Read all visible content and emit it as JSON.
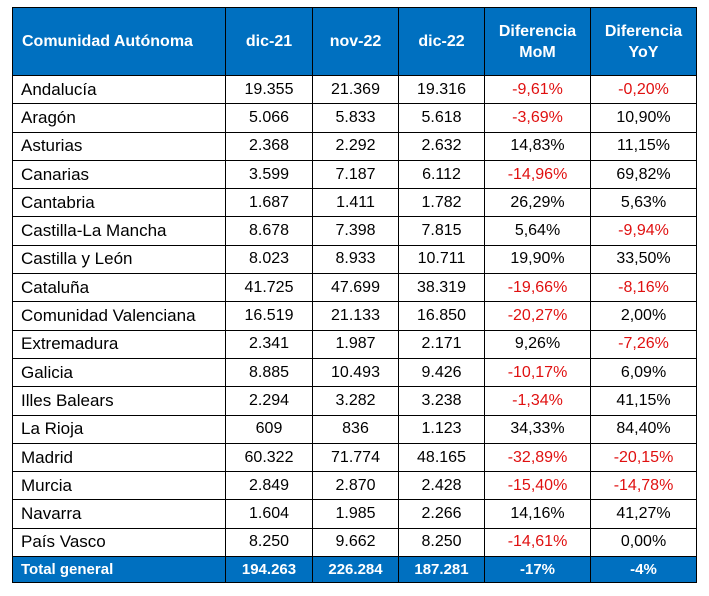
{
  "chart_data": {
    "type": "table",
    "columns": [
      "Comunidad Autónoma",
      "dic-21",
      "nov-22",
      "dic-22",
      "Diferencia MoM",
      "Diferencia YoY"
    ],
    "rows": [
      [
        "Andalucía",
        "19.355",
        "21.369",
        "19.316",
        "-9,61%",
        "-0,20%"
      ],
      [
        "Aragón",
        "5.066",
        "5.833",
        "5.618",
        "-3,69%",
        "10,90%"
      ],
      [
        "Asturias",
        "2.368",
        "2.292",
        "2.632",
        "14,83%",
        "11,15%"
      ],
      [
        "Canarias",
        "3.599",
        "7.187",
        "6.112",
        "-14,96%",
        "69,82%"
      ],
      [
        "Cantabria",
        "1.687",
        "1.411",
        "1.782",
        "26,29%",
        "5,63%"
      ],
      [
        "Castilla-La Mancha",
        "8.678",
        "7.398",
        "7.815",
        "5,64%",
        "-9,94%"
      ],
      [
        "Castilla y León",
        "8.023",
        "8.933",
        "10.711",
        "19,90%",
        "33,50%"
      ],
      [
        "Cataluña",
        "41.725",
        "47.699",
        "38.319",
        "-19,66%",
        "-8,16%"
      ],
      [
        "Comunidad Valenciana",
        "16.519",
        "21.133",
        "16.850",
        "-20,27%",
        "2,00%"
      ],
      [
        "Extremadura",
        "2.341",
        "1.987",
        "2.171",
        "9,26%",
        "-7,26%"
      ],
      [
        "Galicia",
        "8.885",
        "10.493",
        "9.426",
        "-10,17%",
        "6,09%"
      ],
      [
        "Illes Balears",
        "2.294",
        "3.282",
        "3.238",
        "-1,34%",
        "41,15%"
      ],
      [
        "La Rioja",
        "609",
        "836",
        "1.123",
        "34,33%",
        "84,40%"
      ],
      [
        "Madrid",
        "60.322",
        "71.774",
        "48.165",
        "-32,89%",
        "-20,15%"
      ],
      [
        "Murcia",
        "2.849",
        "2.870",
        "2.428",
        "-15,40%",
        "-14,78%"
      ],
      [
        "Navarra",
        "1.604",
        "1.985",
        "2.266",
        "14,16%",
        "41,27%"
      ],
      [
        "País Vasco",
        "8.250",
        "9.662",
        "8.250",
        "-14,61%",
        "0,00%"
      ]
    ],
    "total": [
      "Total general",
      "194.263",
      "226.284",
      "187.281",
      "-17%",
      "-4%"
    ],
    "colors": {
      "header_bg": "#0070c0",
      "header_text": "#ffffff",
      "negative_text": "#e01010",
      "positive_text": "#000000"
    }
  }
}
